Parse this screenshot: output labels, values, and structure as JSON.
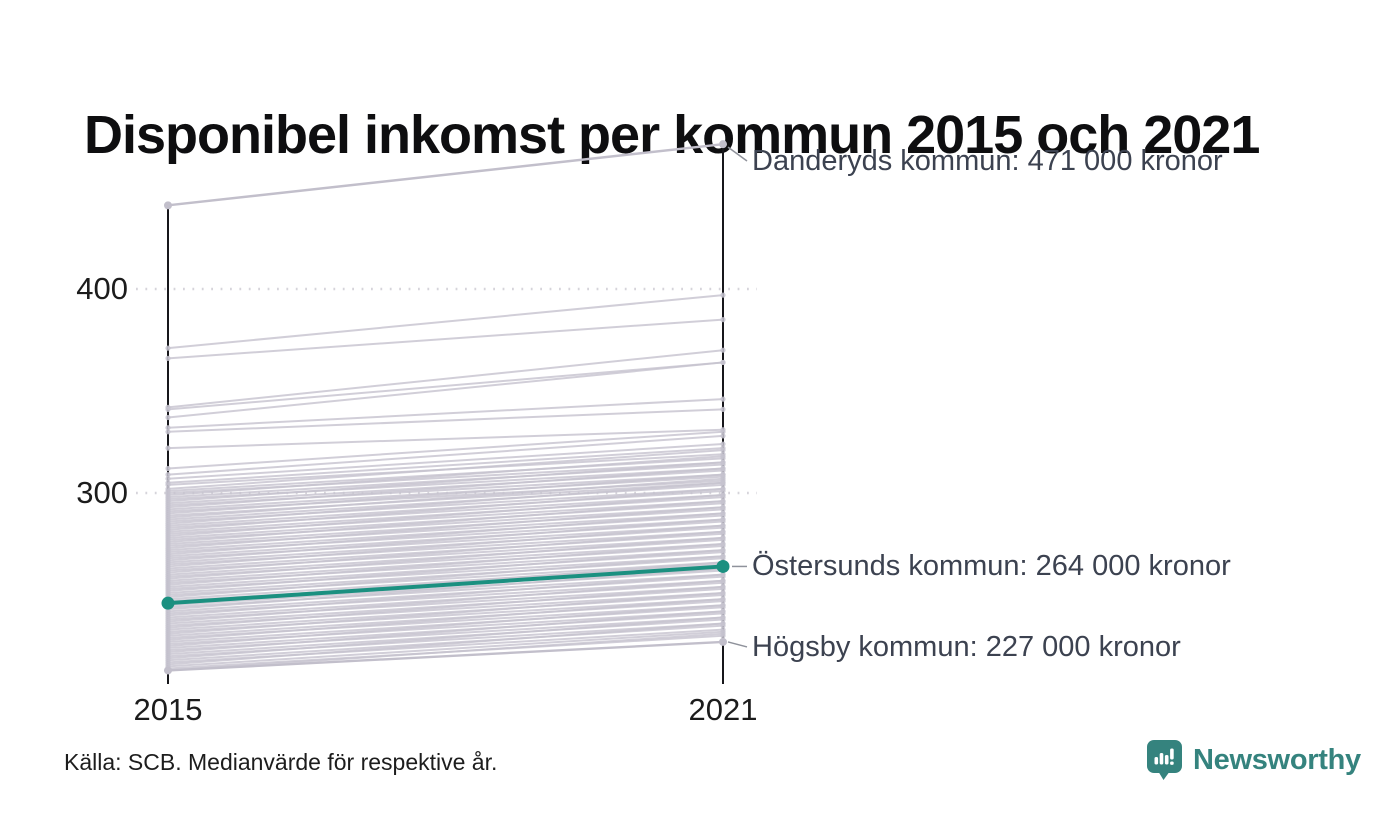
{
  "title": "Disponibel inkomst per kommun 2015 och 2021",
  "source": "Källa: SCB. Medianvärde för respektive år.",
  "branding": {
    "name": "Newsworthy",
    "icon": "newsworthy-bubble-barchart-icon",
    "color": "#35837e"
  },
  "colors": {
    "highlight": "#1b9080",
    "background_line": "#c6c3cf",
    "annotated_gray_line": "#c2bfcb",
    "axis": "#17171b",
    "gridline": "#d6d4da",
    "leader": "#8f929b",
    "annotation_text": "#3c4250"
  },
  "chart_data": {
    "type": "line",
    "subtype": "slopegraph",
    "x": [
      2015,
      2021
    ],
    "x_tick_labels": [
      "2015",
      "2021"
    ],
    "y_ticks": [
      400,
      300
    ],
    "y_tick_labels": [
      "400",
      "300"
    ],
    "values_in_thousands_kronor": true,
    "grid": "dotted-horizontal",
    "annotated_series": [
      {
        "name": "Danderyds kommun",
        "values": [
          441,
          471
        ],
        "label": "Danderyds kommun: 471 000 kronor",
        "style": "background"
      },
      {
        "name": "Östersunds kommun",
        "values": [
          246,
          264
        ],
        "label": "Östersunds kommun: 264 000 kronor",
        "style": "highlight"
      },
      {
        "name": "Högsby kommun",
        "values": [
          213,
          227
        ],
        "label": "Högsby kommun: 227 000 kronor",
        "style": "background"
      }
    ],
    "background_lines_approx": [
      [
        371,
        397
      ],
      [
        366,
        385
      ],
      [
        342,
        370
      ],
      [
        341,
        364
      ],
      [
        337,
        364
      ],
      [
        332,
        346
      ],
      [
        330,
        341
      ],
      [
        322,
        331
      ],
      [
        312,
        330
      ],
      [
        309,
        328
      ],
      [
        307,
        324
      ],
      [
        305,
        322
      ],
      [
        304,
        319
      ],
      [
        302,
        321
      ],
      [
        301,
        317
      ],
      [
        300,
        315
      ],
      [
        299,
        318
      ],
      [
        298,
        314
      ],
      [
        297,
        312
      ],
      [
        296,
        315
      ],
      [
        295,
        311
      ],
      [
        294,
        309
      ],
      [
        293,
        312
      ],
      [
        292,
        308
      ],
      [
        291,
        306
      ],
      [
        290,
        309
      ],
      [
        289,
        305
      ],
      [
        288,
        307
      ],
      [
        287,
        304
      ],
      [
        286,
        302
      ],
      [
        285,
        305
      ],
      [
        284,
        301
      ],
      [
        283,
        299
      ],
      [
        282,
        302
      ],
      [
        281,
        298
      ],
      [
        280,
        296
      ],
      [
        279,
        299
      ],
      [
        278,
        295
      ],
      [
        277,
        293
      ],
      [
        276,
        296
      ],
      [
        275,
        292
      ],
      [
        274,
        290
      ],
      [
        273,
        293
      ],
      [
        272,
        289
      ],
      [
        271,
        287
      ],
      [
        270,
        290
      ],
      [
        269,
        286
      ],
      [
        268,
        284
      ],
      [
        267,
        287
      ],
      [
        266,
        283
      ],
      [
        265,
        281
      ],
      [
        264,
        284
      ],
      [
        263,
        280
      ],
      [
        262,
        278
      ],
      [
        261,
        281
      ],
      [
        260,
        277
      ],
      [
        259,
        275
      ],
      [
        258,
        278
      ],
      [
        257,
        274
      ],
      [
        256,
        272
      ],
      [
        255,
        275
      ],
      [
        254,
        271
      ],
      [
        253,
        269
      ],
      [
        252,
        272
      ],
      [
        251,
        268
      ],
      [
        250,
        266
      ],
      [
        249,
        269
      ],
      [
        248,
        265
      ],
      [
        247,
        263
      ],
      [
        246,
        266
      ],
      [
        245,
        262
      ],
      [
        244,
        260
      ],
      [
        243,
        263
      ],
      [
        242,
        259
      ],
      [
        241,
        257
      ],
      [
        240,
        260
      ],
      [
        239,
        256
      ],
      [
        238,
        254
      ],
      [
        237,
        257
      ],
      [
        236,
        253
      ],
      [
        235,
        251
      ],
      [
        234,
        254
      ],
      [
        233,
        250
      ],
      [
        232,
        248
      ],
      [
        231,
        251
      ],
      [
        230,
        247
      ],
      [
        229,
        245
      ],
      [
        228,
        248
      ],
      [
        227,
        244
      ],
      [
        226,
        242
      ],
      [
        225,
        245
      ],
      [
        224,
        241
      ],
      [
        223,
        239
      ],
      [
        222,
        242
      ],
      [
        221,
        238
      ],
      [
        220,
        236
      ],
      [
        219,
        239
      ],
      [
        218,
        235
      ],
      [
        217,
        233
      ],
      [
        216,
        236
      ],
      [
        215,
        232
      ],
      [
        214,
        230
      ],
      [
        213,
        231
      ]
    ]
  }
}
